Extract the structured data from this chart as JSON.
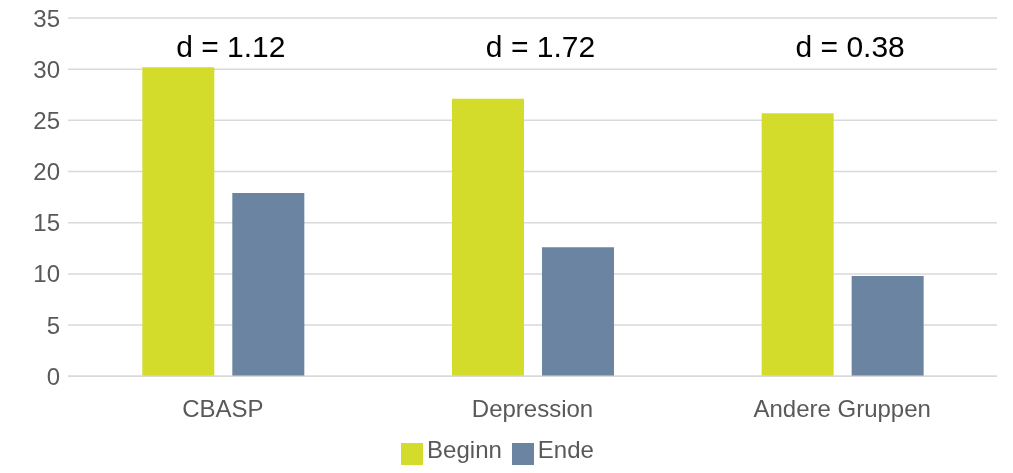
{
  "chart_data": {
    "type": "bar",
    "categories": [
      "CBASP",
      "Depression",
      "Andere Gruppen"
    ],
    "series": [
      {
        "name": "Beginn",
        "color": "#d4dc2b",
        "values": [
          30.2,
          27.1,
          25.7
        ]
      },
      {
        "name": "Ende",
        "color": "#6a84a2",
        "values": [
          17.9,
          12.6,
          9.8
        ]
      }
    ],
    "ylim": [
      0,
      35
    ],
    "yticks": [
      0,
      5,
      10,
      15,
      20,
      25,
      30,
      35
    ],
    "grid": "y",
    "legend": "bottom",
    "annotations": [
      "d = 1.12",
      "d = 1.72",
      "d = 0.38"
    ]
  }
}
